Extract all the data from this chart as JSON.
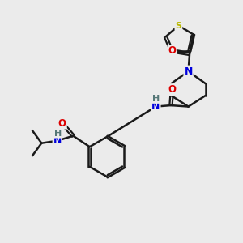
{
  "background_color": "#ebebeb",
  "bond_color": "#1a1a1a",
  "atom_colors": {
    "S": "#b8b800",
    "N": "#0000dd",
    "O": "#dd0000",
    "H": "#557777",
    "C": "#1a1a1a"
  },
  "figsize": [
    3.0,
    3.0
  ],
  "dpi": 100
}
